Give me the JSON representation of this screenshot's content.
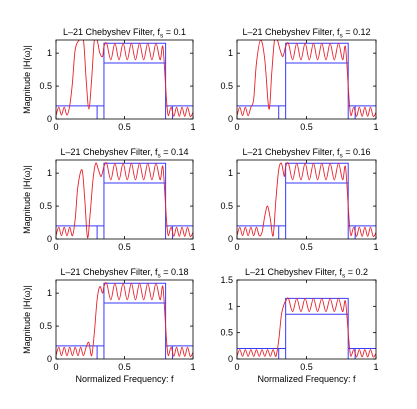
{
  "chart_data": [
    {
      "type": "line",
      "title": "L–21 Chebyshev Filter, f",
      "title_sub": "s",
      "title_tail": " = 0.1",
      "fs": 0.1,
      "ylabel": "Magnitude |H(ω)|",
      "xlabel": "",
      "xlim": [
        0,
        1
      ],
      "ylim": [
        0,
        1.2
      ],
      "xticks": [
        "0",
        "0.5",
        "1"
      ],
      "xtick_values": [
        0,
        0.5,
        1
      ],
      "yticks": [
        "0",
        "0.5",
        "1"
      ],
      "ytick_values": [
        0,
        0.5,
        1
      ],
      "pass_band": [
        0.35,
        0.8
      ],
      "mask_lower": 0.85,
      "mask_upper": 1.15,
      "stop_upper": 0.2,
      "response_x": [
        0,
        0.02,
        0.04,
        0.06,
        0.08,
        0.1,
        0.12,
        0.14,
        0.17,
        0.2,
        0.22,
        0.24,
        0.26,
        0.28,
        0.3,
        0.32,
        0.34,
        0.35,
        0.37,
        0.4,
        0.43,
        0.46,
        0.49,
        0.52,
        0.55,
        0.58,
        0.61,
        0.64,
        0.67,
        0.7,
        0.73,
        0.76,
        0.78,
        0.8,
        0.81,
        0.82,
        0.84,
        0.86,
        0.88,
        0.9,
        0.92,
        0.94,
        0.96,
        0.98,
        1.0
      ],
      "response_y": [
        0.05,
        0.18,
        0.06,
        0.18,
        0.06,
        0.2,
        0.55,
        1.05,
        1.2,
        1.2,
        0.6,
        0.15,
        0.6,
        1.2,
        1.2,
        1.0,
        0.95,
        1.1,
        1.15,
        0.9,
        1.15,
        0.9,
        1.15,
        0.9,
        1.15,
        0.9,
        1.15,
        0.9,
        1.15,
        0.9,
        1.15,
        0.9,
        1.1,
        0.5,
        0.2,
        0.05,
        0.18,
        0.04,
        0.18,
        0.04,
        0.18,
        0.04,
        0.18,
        0.04,
        0.1
      ]
    },
    {
      "type": "line",
      "title": "L–21 Chebyshev Filter, f",
      "title_sub": "s",
      "title_tail": " = 0.12",
      "fs": 0.12,
      "ylabel": "",
      "xlabel": "",
      "xlim": [
        0,
        1
      ],
      "ylim": [
        0,
        1.2
      ],
      "xticks": [
        "0",
        "0.5",
        "1"
      ],
      "xtick_values": [
        0,
        0.5,
        1
      ],
      "yticks": [
        "0",
        "0.5",
        "1"
      ],
      "ytick_values": [
        0,
        0.5,
        1
      ],
      "pass_band": [
        0.35,
        0.8
      ],
      "mask_lower": 0.85,
      "mask_upper": 1.15,
      "stop_upper": 0.2,
      "response_x": [
        0,
        0.02,
        0.04,
        0.06,
        0.08,
        0.1,
        0.12,
        0.14,
        0.17,
        0.2,
        0.23,
        0.25,
        0.27,
        0.29,
        0.31,
        0.33,
        0.35,
        0.37,
        0.4,
        0.43,
        0.46,
        0.49,
        0.52,
        0.55,
        0.58,
        0.61,
        0.64,
        0.67,
        0.7,
        0.73,
        0.76,
        0.78,
        0.8,
        0.81,
        0.82,
        0.84,
        0.86,
        0.88,
        0.9,
        0.92,
        0.94,
        0.96,
        0.98,
        1.0
      ],
      "response_y": [
        0.05,
        0.18,
        0.05,
        0.18,
        0.05,
        0.18,
        0.3,
        0.85,
        1.2,
        0.9,
        0.15,
        0.7,
        1.2,
        1.2,
        1.05,
        0.95,
        1.1,
        1.15,
        0.9,
        1.15,
        0.9,
        1.15,
        0.9,
        1.15,
        0.9,
        1.15,
        0.9,
        1.15,
        0.9,
        1.15,
        0.9,
        1.1,
        0.5,
        0.2,
        0.05,
        0.18,
        0.04,
        0.18,
        0.04,
        0.18,
        0.04,
        0.18,
        0.04,
        0.1
      ]
    },
    {
      "type": "line",
      "title": "L–21 Chebyshev Filter, f",
      "title_sub": "s",
      "title_tail": " = 0.14",
      "fs": 0.14,
      "ylabel": "Magnitude |H(ω)|",
      "xlabel": "",
      "xlim": [
        0,
        1
      ],
      "ylim": [
        0,
        1.2
      ],
      "xticks": [
        "0",
        "0.5",
        "1"
      ],
      "xtick_values": [
        0,
        0.5,
        1
      ],
      "yticks": [
        "0",
        "0.5",
        "1"
      ],
      "ytick_values": [
        0,
        0.5,
        1
      ],
      "pass_band": [
        0.35,
        0.8
      ],
      "mask_lower": 0.85,
      "mask_upper": 1.15,
      "stop_upper": 0.2,
      "response_x": [
        0,
        0.02,
        0.04,
        0.06,
        0.08,
        0.1,
        0.12,
        0.14,
        0.16,
        0.19,
        0.21,
        0.23,
        0.25,
        0.27,
        0.29,
        0.31,
        0.33,
        0.35,
        0.37,
        0.4,
        0.43,
        0.46,
        0.49,
        0.52,
        0.55,
        0.58,
        0.61,
        0.64,
        0.67,
        0.7,
        0.73,
        0.76,
        0.78,
        0.8,
        0.81,
        0.82,
        0.84,
        0.86,
        0.88,
        0.9,
        0.92,
        0.94,
        0.96,
        0.98,
        1.0
      ],
      "response_y": [
        0.05,
        0.18,
        0.05,
        0.18,
        0.05,
        0.18,
        0.05,
        0.3,
        0.8,
        1.05,
        0.6,
        0.02,
        0.4,
        0.9,
        1.15,
        1.05,
        0.95,
        1.1,
        1.15,
        0.9,
        1.15,
        0.9,
        1.15,
        0.9,
        1.15,
        0.9,
        1.15,
        0.9,
        1.15,
        0.9,
        1.15,
        0.9,
        1.1,
        0.5,
        0.2,
        0.05,
        0.18,
        0.04,
        0.18,
        0.04,
        0.18,
        0.04,
        0.18,
        0.04,
        0.1
      ]
    },
    {
      "type": "line",
      "title": "L–21 Chebyshev Filter, f",
      "title_sub": "s",
      "title_tail": " = 0.16",
      "fs": 0.16,
      "ylabel": "",
      "xlabel": "",
      "xlim": [
        0,
        1
      ],
      "ylim": [
        0,
        1.2
      ],
      "xticks": [
        "0",
        "0.5",
        "1"
      ],
      "xtick_values": [
        0,
        0.5,
        1
      ],
      "yticks": [
        "0",
        "0.5",
        "1"
      ],
      "ytick_values": [
        0,
        0.5,
        1
      ],
      "pass_band": [
        0.35,
        0.8
      ],
      "mask_lower": 0.85,
      "mask_upper": 1.15,
      "stop_upper": 0.2,
      "response_x": [
        0,
        0.02,
        0.04,
        0.06,
        0.08,
        0.1,
        0.12,
        0.14,
        0.16,
        0.18,
        0.2,
        0.22,
        0.24,
        0.26,
        0.28,
        0.3,
        0.32,
        0.34,
        0.35,
        0.37,
        0.4,
        0.43,
        0.46,
        0.49,
        0.52,
        0.55,
        0.58,
        0.61,
        0.64,
        0.67,
        0.7,
        0.73,
        0.76,
        0.78,
        0.8,
        0.81,
        0.82,
        0.84,
        0.86,
        0.88,
        0.9,
        0.92,
        0.94,
        0.96,
        0.98,
        1.0
      ],
      "response_y": [
        0.05,
        0.18,
        0.05,
        0.18,
        0.05,
        0.18,
        0.05,
        0.18,
        0.05,
        0.1,
        0.35,
        0.5,
        0.3,
        0.05,
        0.6,
        1.05,
        1.15,
        0.95,
        1.1,
        1.15,
        0.9,
        1.15,
        0.9,
        1.15,
        0.9,
        1.15,
        0.9,
        1.15,
        0.9,
        1.15,
        0.9,
        1.15,
        0.9,
        1.1,
        0.5,
        0.2,
        0.05,
        0.18,
        0.04,
        0.18,
        0.04,
        0.18,
        0.04,
        0.18,
        0.04,
        0.1
      ]
    },
    {
      "type": "line",
      "title": "L–21 Chebyshev Filter, f",
      "title_sub": "s",
      "title_tail": " = 0.18",
      "fs": 0.18,
      "ylabel": "Magnitude |H(ω)|",
      "xlabel": "Normalized Frequency: f",
      "xlim": [
        0,
        1
      ],
      "ylim": [
        0,
        1.2
      ],
      "xticks": [
        "0",
        "0.5",
        "1"
      ],
      "xtick_values": [
        0,
        0.5,
        1
      ],
      "yticks": [
        "0",
        "0.5",
        "1"
      ],
      "ytick_values": [
        0,
        0.5,
        1
      ],
      "pass_band": [
        0.35,
        0.8
      ],
      "mask_lower": 0.85,
      "mask_upper": 1.15,
      "stop_upper": 0.2,
      "response_x": [
        0,
        0.02,
        0.04,
        0.06,
        0.08,
        0.1,
        0.12,
        0.14,
        0.16,
        0.18,
        0.2,
        0.22,
        0.24,
        0.26,
        0.28,
        0.3,
        0.32,
        0.34,
        0.35,
        0.37,
        0.4,
        0.43,
        0.46,
        0.49,
        0.52,
        0.55,
        0.58,
        0.61,
        0.64,
        0.67,
        0.7,
        0.73,
        0.76,
        0.78,
        0.8,
        0.81,
        0.82,
        0.84,
        0.86,
        0.88,
        0.9,
        0.92,
        0.94,
        0.96,
        0.98,
        1.0
      ],
      "response_y": [
        0.05,
        0.18,
        0.05,
        0.18,
        0.05,
        0.18,
        0.05,
        0.18,
        0.05,
        0.18,
        0.05,
        0.18,
        0.25,
        0.05,
        0.4,
        0.9,
        1.1,
        1.0,
        1.1,
        1.15,
        0.9,
        1.15,
        0.9,
        1.15,
        0.9,
        1.15,
        0.9,
        1.15,
        0.9,
        1.15,
        0.9,
        1.15,
        0.9,
        1.1,
        0.5,
        0.2,
        0.05,
        0.18,
        0.04,
        0.18,
        0.04,
        0.18,
        0.04,
        0.18,
        0.04,
        0.1
      ]
    },
    {
      "type": "line",
      "title": "L–21 Chebyshev Filter, f",
      "title_sub": "s",
      "title_tail": " = 0.2",
      "fs": 0.2,
      "ylabel": "",
      "xlabel": "Normalized Frequency: f",
      "xlim": [
        0,
        1
      ],
      "ylim": [
        0,
        1.5
      ],
      "xticks": [
        "0",
        "0.5",
        "1"
      ],
      "xtick_values": [
        0,
        0.5,
        1
      ],
      "yticks": [
        "0",
        "0.5",
        "1",
        "1.5"
      ],
      "ytick_values": [
        0,
        0.5,
        1,
        1.5
      ],
      "pass_band": [
        0.35,
        0.8
      ],
      "mask_lower": 0.85,
      "mask_upper": 1.15,
      "stop_upper": 0.2,
      "response_x": [
        0,
        0.02,
        0.04,
        0.06,
        0.08,
        0.1,
        0.12,
        0.14,
        0.16,
        0.18,
        0.2,
        0.22,
        0.24,
        0.26,
        0.28,
        0.3,
        0.32,
        0.34,
        0.35,
        0.37,
        0.4,
        0.43,
        0.46,
        0.49,
        0.52,
        0.55,
        0.58,
        0.61,
        0.64,
        0.67,
        0.7,
        0.73,
        0.76,
        0.78,
        0.8,
        0.81,
        0.82,
        0.84,
        0.86,
        0.88,
        0.9,
        0.92,
        0.94,
        0.96,
        0.98,
        1.0
      ],
      "response_y": [
        0.05,
        0.18,
        0.05,
        0.18,
        0.05,
        0.18,
        0.05,
        0.18,
        0.05,
        0.18,
        0.05,
        0.18,
        0.05,
        0.18,
        0.05,
        0.35,
        0.85,
        1.05,
        1.1,
        1.15,
        0.9,
        1.15,
        0.9,
        1.15,
        0.9,
        1.15,
        0.9,
        1.15,
        0.9,
        1.15,
        0.9,
        1.15,
        0.9,
        1.1,
        0.5,
        0.2,
        0.05,
        0.18,
        0.04,
        0.18,
        0.04,
        0.18,
        0.04,
        0.18,
        0.04,
        0.1
      ]
    }
  ],
  "colors": {
    "response": "#e8202a",
    "mask": "#3a3aff",
    "axis": "#000000",
    "background": "#ffffff"
  }
}
